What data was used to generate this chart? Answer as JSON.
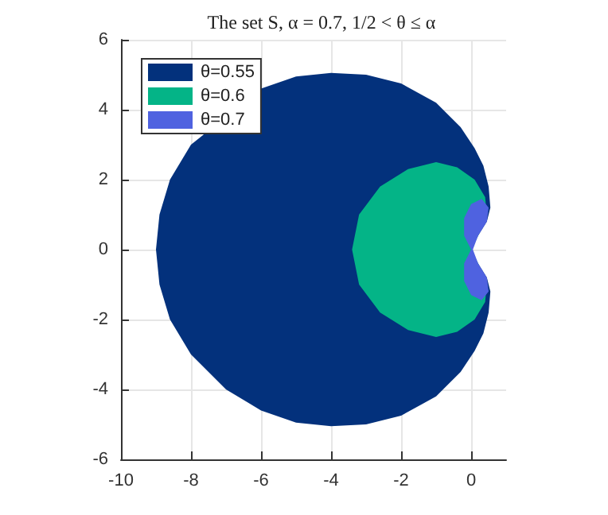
{
  "chart_data": {
    "type": "area",
    "title": "The set S, α = 0.7, 1/2 < θ ≤ α",
    "xlim": [
      -10,
      1
    ],
    "xticks": [
      -10,
      -8,
      -6,
      -4,
      -2,
      0
    ],
    "ylim": [
      -6,
      6
    ],
    "yticks": [
      -6,
      -4,
      -2,
      0,
      2,
      4,
      6
    ],
    "grid": true,
    "legend": "top left",
    "series": [
      {
        "name": "θ=0.55",
        "color": "#03317c",
        "x": [
          0,
          0.2,
          0.45,
          0.55,
          0.5,
          0.35,
          0.1,
          -0.3,
          -1,
          -2,
          -3,
          -4,
          -5,
          -6,
          -7,
          -8,
          -8.6,
          -8.9,
          -9,
          -8.9,
          -8.6,
          -8,
          -7,
          -6,
          -5,
          -4,
          -3,
          -2,
          -1,
          -0.3,
          0.1,
          0.35,
          0.5,
          0.55,
          0.45,
          0.2,
          0
        ],
        "values": [
          0,
          0.4,
          0.8,
          1.2,
          1.8,
          2.4,
          2.9,
          3.5,
          4.2,
          4.75,
          5,
          5.05,
          4.95,
          4.6,
          null,
          3,
          2,
          1,
          0,
          -1,
          -2,
          -3,
          -4,
          -4.6,
          -4.95,
          -5.05,
          -5,
          -4.75,
          -4.2,
          -3.5,
          -2.9,
          -2.4,
          -1.8,
          -1.2,
          -0.8,
          -0.4,
          0
        ]
      },
      {
        "name": "θ=0.6",
        "color": "#04b487",
        "x": [
          0,
          0.25,
          0.45,
          0.4,
          0.1,
          -0.4,
          -1,
          -1.8,
          -2.6,
          -3.2,
          -3.4,
          -3.2,
          -2.6,
          -1.8,
          -1,
          -0.4,
          0.1,
          0.4,
          0.45,
          0.25,
          0
        ],
        "values": [
          0,
          0.5,
          1,
          1.5,
          2,
          2.35,
          2.5,
          2.3,
          1.8,
          1,
          0,
          -1,
          -1.8,
          -2.3,
          -2.5,
          -2.35,
          -2,
          -1.5,
          -1,
          -0.5,
          0
        ]
      },
      {
        "name": "θ=0.7",
        "color": "#4f62e0",
        "x": [
          0,
          -0.2,
          -0.2,
          0,
          0.3,
          0.5,
          0.45,
          0.2,
          0.05,
          0.2,
          0.45,
          0.5,
          0.3,
          0,
          -0.2,
          -0.2
        ],
        "values": [
          0,
          0.4,
          0.9,
          1.3,
          1.45,
          1.2,
          0.8,
          0.4,
          0,
          -0.4,
          -0.8,
          -1.2,
          -1.45,
          -1.3,
          -0.9,
          -0.4
        ]
      }
    ]
  }
}
